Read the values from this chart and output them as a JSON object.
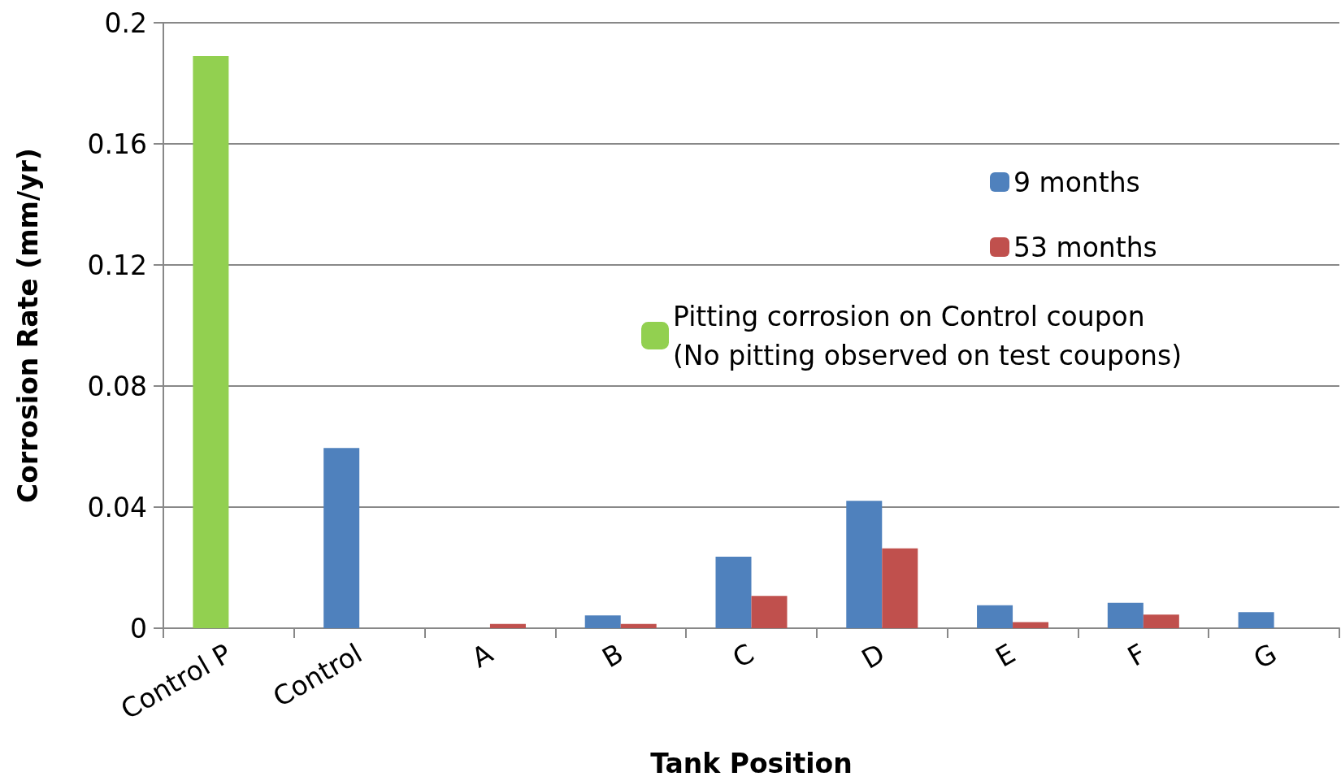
{
  "chart_data": {
    "type": "bar",
    "xlabel": "Tank Position",
    "ylabel": "Corrosion Rate (mm/yr)",
    "categories": [
      "Control P",
      "Control",
      "A",
      "B",
      "C",
      "D",
      "E",
      "F",
      "G"
    ],
    "series": [
      {
        "name": "9 months",
        "color": "#4f81bd",
        "values": [
          null,
          0.0595,
          null,
          0.0042,
          0.0236,
          0.0421,
          0.0076,
          0.0084,
          0.0053
        ]
      },
      {
        "name": "53 months",
        "color": "#c0504d",
        "values": [
          null,
          null,
          0.0014,
          0.0014,
          0.0107,
          0.0264,
          0.002,
          0.0045,
          null
        ]
      },
      {
        "name": "Pitting corrosion on Control coupon\n(No pitting observed on test coupons)",
        "color": "#92d050",
        "values": [
          0.189,
          null,
          null,
          null,
          null,
          null,
          null,
          null,
          null
        ]
      }
    ],
    "ylim": [
      0,
      0.2
    ],
    "yticks": [
      0,
      0.04,
      0.08,
      0.12,
      0.16,
      0.2
    ],
    "grid": "y",
    "legend": "top right"
  }
}
